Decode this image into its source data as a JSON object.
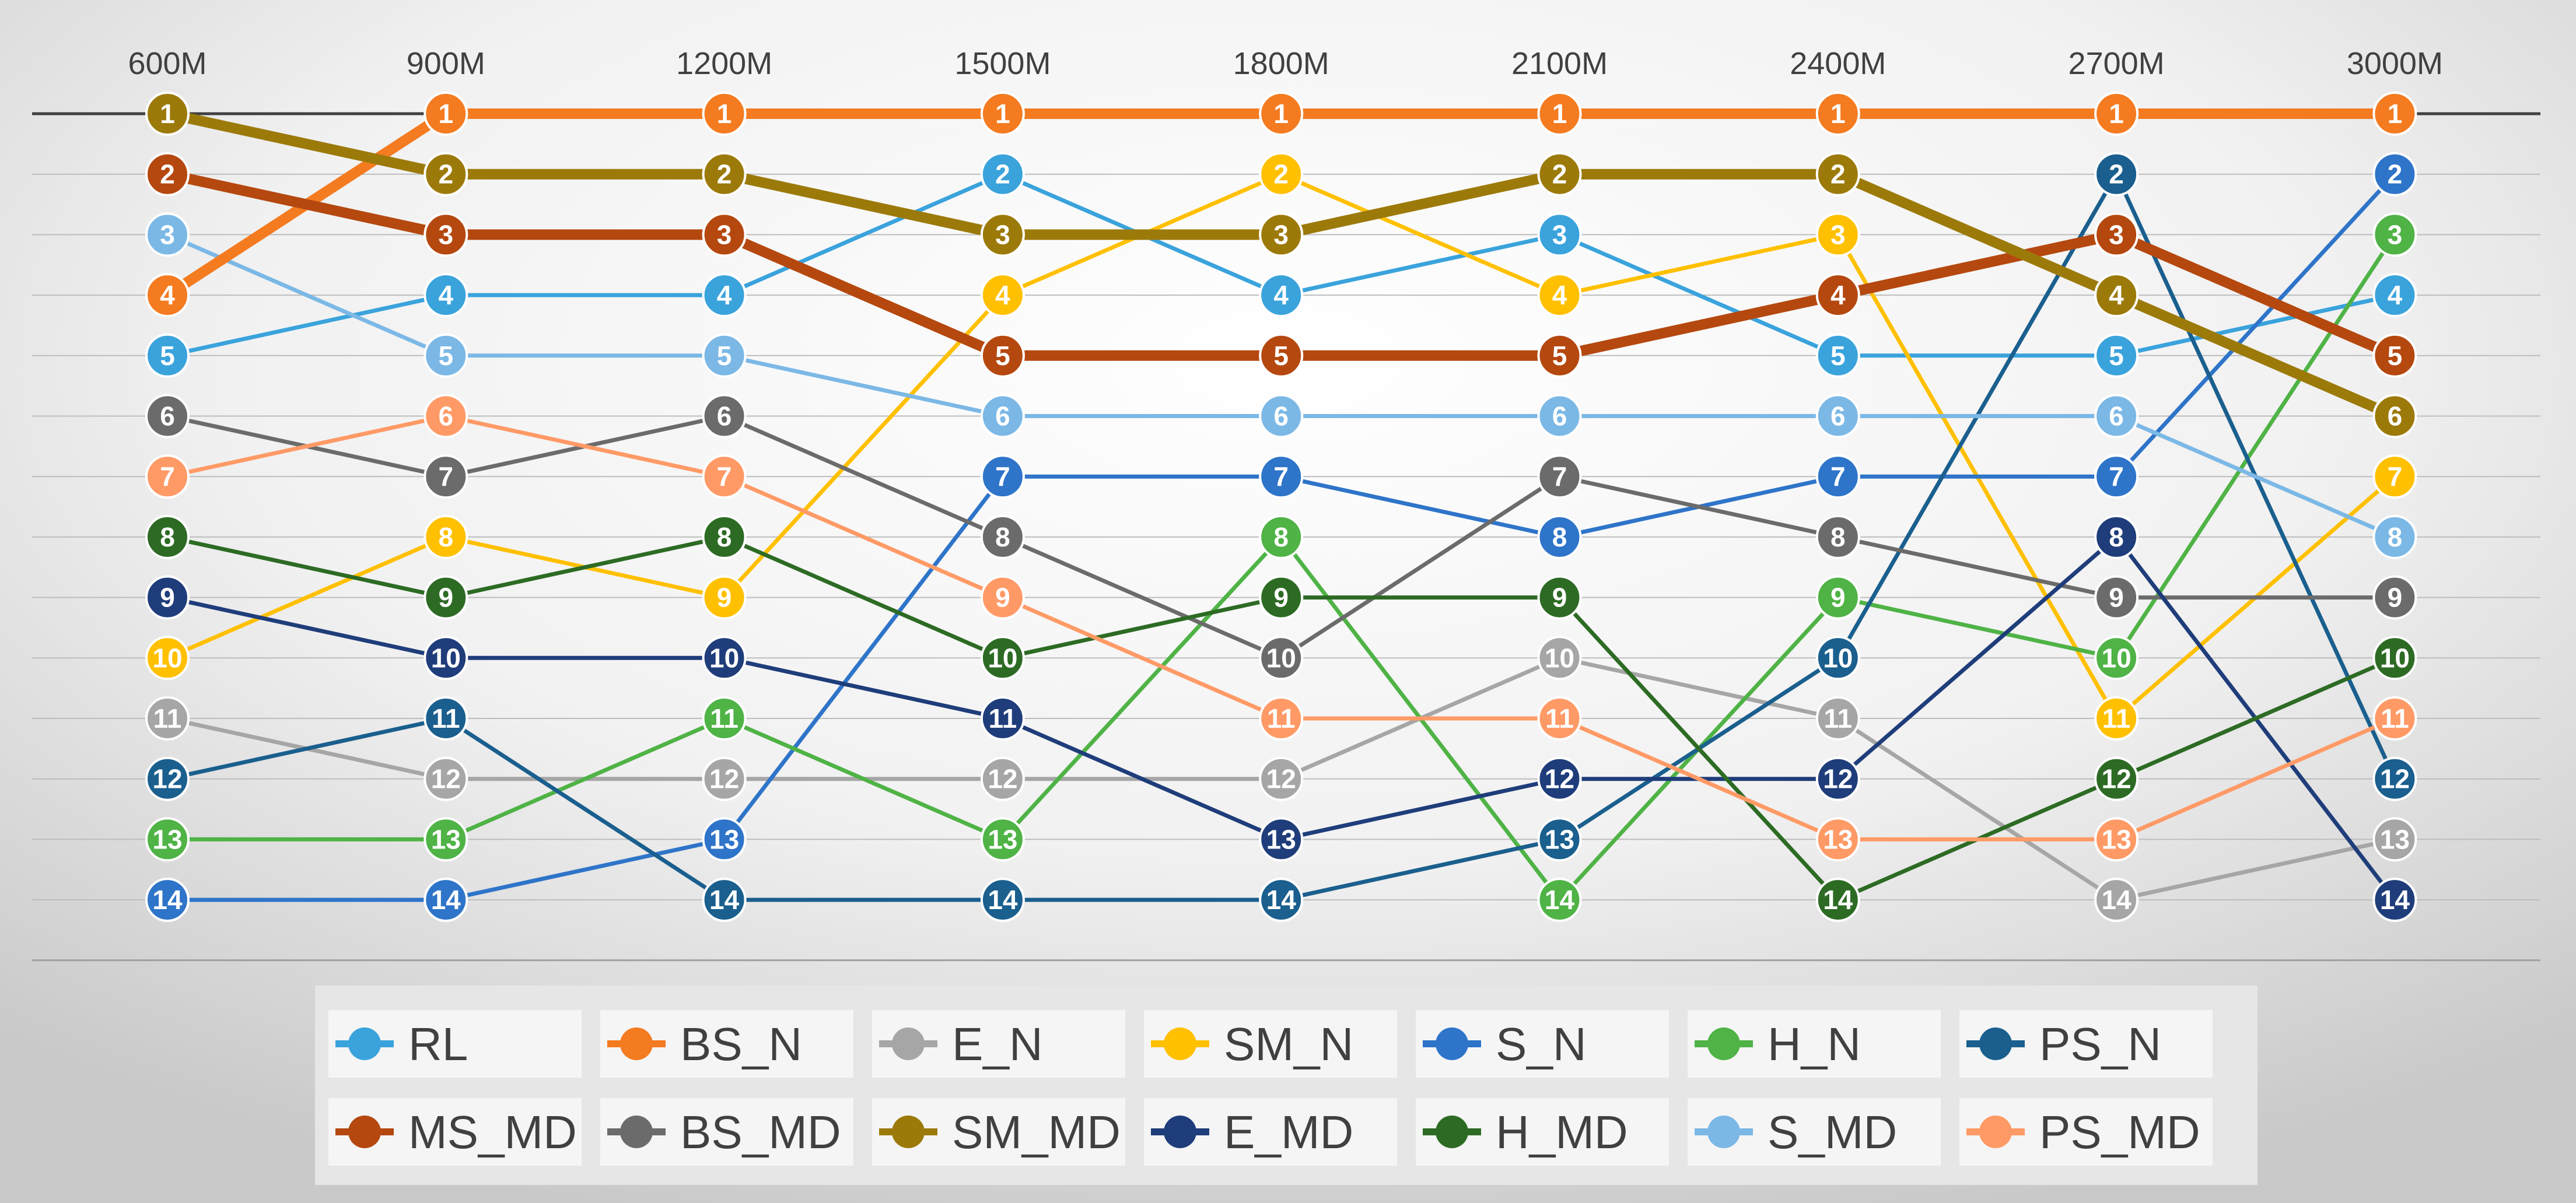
{
  "chart_data": {
    "type": "line",
    "subtype": "bump",
    "title": "",
    "xlabel": "",
    "ylabel": "",
    "y_reversed": true,
    "ylim": [
      1,
      14
    ],
    "grid": true,
    "legend_position": "bottom",
    "categories": [
      "600M",
      "900M",
      "1200M",
      "1500M",
      "1800M",
      "2100M",
      "2400M",
      "2700M",
      "3000M"
    ],
    "series": [
      {
        "name": "RL",
        "color": "#3aa3dc",
        "bold": false,
        "values": [
          5,
          4,
          4,
          2,
          4,
          3,
          5,
          5,
          4
        ]
      },
      {
        "name": "BS_N",
        "color": "#f47b20",
        "bold": true,
        "values": [
          4,
          1,
          1,
          1,
          1,
          1,
          1,
          1,
          1
        ]
      },
      {
        "name": "E_N",
        "color": "#a6a6a6",
        "bold": false,
        "values": [
          11,
          12,
          12,
          12,
          12,
          10,
          11,
          14,
          13
        ]
      },
      {
        "name": "SM_N",
        "color": "#ffc000",
        "bold": false,
        "values": [
          10,
          8,
          9,
          4,
          2,
          4,
          3,
          11,
          7
        ]
      },
      {
        "name": "S_N",
        "color": "#2e74c9",
        "bold": false,
        "values": [
          14,
          14,
          13,
          7,
          7,
          8,
          7,
          7,
          2
        ]
      },
      {
        "name": "H_N",
        "color": "#4fb346",
        "bold": false,
        "values": [
          13,
          13,
          11,
          13,
          8,
          14,
          9,
          10,
          3
        ]
      },
      {
        "name": "PS_N",
        "color": "#1a5f8e",
        "bold": false,
        "values": [
          12,
          11,
          14,
          14,
          14,
          13,
          10,
          2,
          12
        ]
      },
      {
        "name": "MS_MD",
        "color": "#b5480f",
        "bold": true,
        "values": [
          2,
          3,
          3,
          5,
          5,
          5,
          4,
          3,
          5
        ]
      },
      {
        "name": "BS_MD",
        "color": "#6b6b6b",
        "bold": false,
        "values": [
          6,
          7,
          6,
          8,
          10,
          7,
          8,
          9,
          9
        ]
      },
      {
        "name": "SM_MD",
        "color": "#9c7a0a",
        "bold": true,
        "values": [
          1,
          2,
          2,
          3,
          3,
          2,
          2,
          4,
          6
        ]
      },
      {
        "name": "E_MD",
        "color": "#1f3d7a",
        "bold": false,
        "values": [
          9,
          10,
          10,
          11,
          13,
          12,
          12,
          8,
          14
        ]
      },
      {
        "name": "H_MD",
        "color": "#2d6b24",
        "bold": false,
        "values": [
          8,
          9,
          8,
          10,
          9,
          9,
          14,
          12,
          10
        ]
      },
      {
        "name": "S_MD",
        "color": "#7bb8e6",
        "bold": false,
        "values": [
          3,
          5,
          5,
          6,
          6,
          6,
          6,
          6,
          8
        ]
      },
      {
        "name": "PS_MD",
        "color": "#ff9a66",
        "bold": false,
        "values": [
          7,
          6,
          7,
          9,
          11,
          11,
          13,
          13,
          11
        ]
      }
    ]
  }
}
